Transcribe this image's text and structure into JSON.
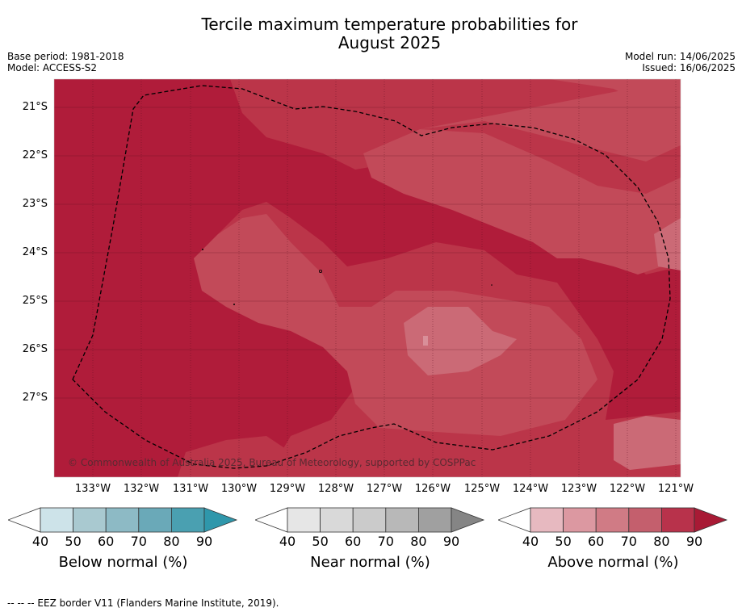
{
  "title_line1": "Tercile maximum temperature probabilities for",
  "title_line2": "August 2025",
  "meta": {
    "base_period": "Base period: 1981-2018",
    "model": "Model: ACCESS-S2",
    "model_run": "Model run: 14/06/2025",
    "issued": "Issued: 16/06/2025"
  },
  "map": {
    "lat_labels": [
      "21°S",
      "22°S",
      "23°S",
      "24°S",
      "25°S",
      "26°S",
      "27°S"
    ],
    "lon_labels": [
      "133°W",
      "132°W",
      "131°W",
      "130°W",
      "129°W",
      "128°W",
      "127°W",
      "126°W",
      "125°W",
      "124°W",
      "123°W",
      "122°W",
      "121°W"
    ],
    "copyright": "© Commonwealth of Australia 2025, Bureau of Meteorology, supported by COSPPac",
    "colors": {
      "above_90": "#b01c3a",
      "above_80": "#bb3549",
      "above_70": "#c24a59",
      "above_60": "#cb6a76",
      "above_50": "#d98f99"
    }
  },
  "colorbars": [
    {
      "title": "Below normal (%)",
      "ticks": [
        "40",
        "50",
        "60",
        "70",
        "80",
        "90"
      ],
      "colors": [
        "#cde3e9",
        "#a9c9d0",
        "#8dbac5",
        "#6aa9b8",
        "#4aa0b1",
        "#2f97ab"
      ]
    },
    {
      "title": "Near normal (%)",
      "ticks": [
        "40",
        "50",
        "60",
        "70",
        "80",
        "90"
      ],
      "colors": [
        "#e6e6e6",
        "#d9d9d9",
        "#cbcbcb",
        "#b8b8b8",
        "#a0a0a0",
        "#858585"
      ]
    },
    {
      "title": "Above normal (%)",
      "ticks": [
        "40",
        "50",
        "60",
        "70",
        "80",
        "90"
      ],
      "colors": [
        "#e7b9c0",
        "#dc98a1",
        "#d07b85",
        "#c45f6d",
        "#b8324b",
        "#a81a35"
      ]
    }
  ],
  "footnote": "--  --  -- EEZ border V11 (Flanders Marine Institute, 2019)."
}
